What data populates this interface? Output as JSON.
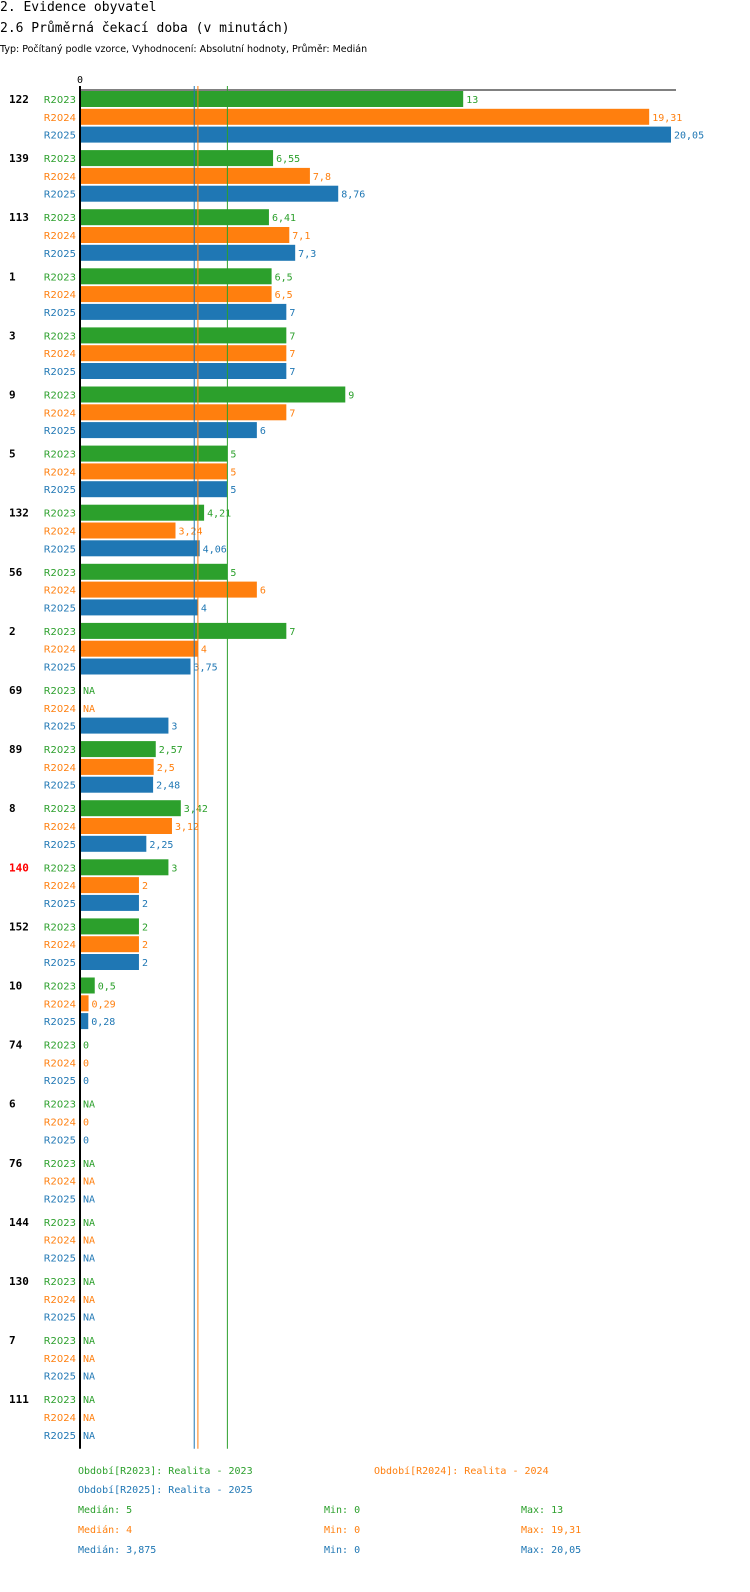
{
  "header": {
    "section": "2. Evidence obyvatel",
    "title": "2.6 Průměrná čekací doba (v minutách)",
    "subtitle": "Typ: Počítaný podle vzorce, Vyhodnocení: Absolutní hodnoty, Průměr: Medián"
  },
  "colors": {
    "R2023": "#2ca02c",
    "R2024": "#ff7f0e",
    "R2025": "#1f77b4",
    "highlight": "#ff0000"
  },
  "chart_data": {
    "type": "bar",
    "orientation": "horizontal",
    "title": "2.6 Průměrná čekací doba (v minutách)",
    "axis_zero_label": "0",
    "xlim": [
      0,
      20.05
    ],
    "series_names": [
      "R2023",
      "R2024",
      "R2025"
    ],
    "groups": [
      {
        "id": "122",
        "highlight": false,
        "values": [
          "13",
          "19,31",
          "20,05"
        ]
      },
      {
        "id": "139",
        "highlight": false,
        "values": [
          "6,55",
          "7,8",
          "8,76"
        ]
      },
      {
        "id": "113",
        "highlight": false,
        "values": [
          "6,41",
          "7,1",
          "7,3"
        ]
      },
      {
        "id": "1",
        "highlight": false,
        "values": [
          "6,5",
          "6,5",
          "7"
        ]
      },
      {
        "id": "3",
        "highlight": false,
        "values": [
          "7",
          "7",
          "7"
        ]
      },
      {
        "id": "9",
        "highlight": false,
        "values": [
          "9",
          "7",
          "6"
        ]
      },
      {
        "id": "5",
        "highlight": false,
        "values": [
          "5",
          "5",
          "5"
        ]
      },
      {
        "id": "132",
        "highlight": false,
        "values": [
          "4,21",
          "3,24",
          "4,06"
        ]
      },
      {
        "id": "56",
        "highlight": false,
        "values": [
          "5",
          "6",
          "4"
        ]
      },
      {
        "id": "2",
        "highlight": false,
        "values": [
          "7",
          "4",
          "3,75"
        ]
      },
      {
        "id": "69",
        "highlight": false,
        "values": [
          "NA",
          "NA",
          "3"
        ]
      },
      {
        "id": "89",
        "highlight": false,
        "values": [
          "2,57",
          "2,5",
          "2,48"
        ]
      },
      {
        "id": "8",
        "highlight": false,
        "values": [
          "3,42",
          "3,12",
          "2,25"
        ]
      },
      {
        "id": "140",
        "highlight": true,
        "values": [
          "3",
          "2",
          "2"
        ]
      },
      {
        "id": "152",
        "highlight": false,
        "values": [
          "2",
          "2",
          "2"
        ]
      },
      {
        "id": "10",
        "highlight": false,
        "values": [
          "0,5",
          "0,29",
          "0,28"
        ]
      },
      {
        "id": "74",
        "highlight": false,
        "values": [
          "0",
          "0",
          "0"
        ]
      },
      {
        "id": "6",
        "highlight": false,
        "values": [
          "NA",
          "0",
          "0"
        ]
      },
      {
        "id": "76",
        "highlight": false,
        "values": [
          "NA",
          "NA",
          "NA"
        ]
      },
      {
        "id": "144",
        "highlight": false,
        "values": [
          "NA",
          "NA",
          "NA"
        ]
      },
      {
        "id": "130",
        "highlight": false,
        "values": [
          "NA",
          "NA",
          "NA"
        ]
      },
      {
        "id": "7",
        "highlight": false,
        "values": [
          "NA",
          "NA",
          "NA"
        ]
      },
      {
        "id": "111",
        "highlight": false,
        "values": [
          "NA",
          "NA",
          "NA"
        ]
      }
    ],
    "median_lines": {
      "R2023": 5,
      "R2024": 4,
      "R2025": 3.875
    }
  },
  "legend": {
    "period_2023": "Období[R2023]: Realita - 2023",
    "period_2024": "Období[R2024]: Realita - 2024",
    "period_2025": "Období[R2025]: Realita - 2025",
    "stats": [
      {
        "series": "R2023",
        "median": "Medián: 5",
        "min": "Min: 0",
        "max": "Max: 13"
      },
      {
        "series": "R2024",
        "median": "Medián: 4",
        "min": "Min: 0",
        "max": "Max: 19,31"
      },
      {
        "series": "R2025",
        "median": "Medián: 3,875",
        "min": "Min: 0",
        "max": "Max: 20,05"
      }
    ]
  }
}
